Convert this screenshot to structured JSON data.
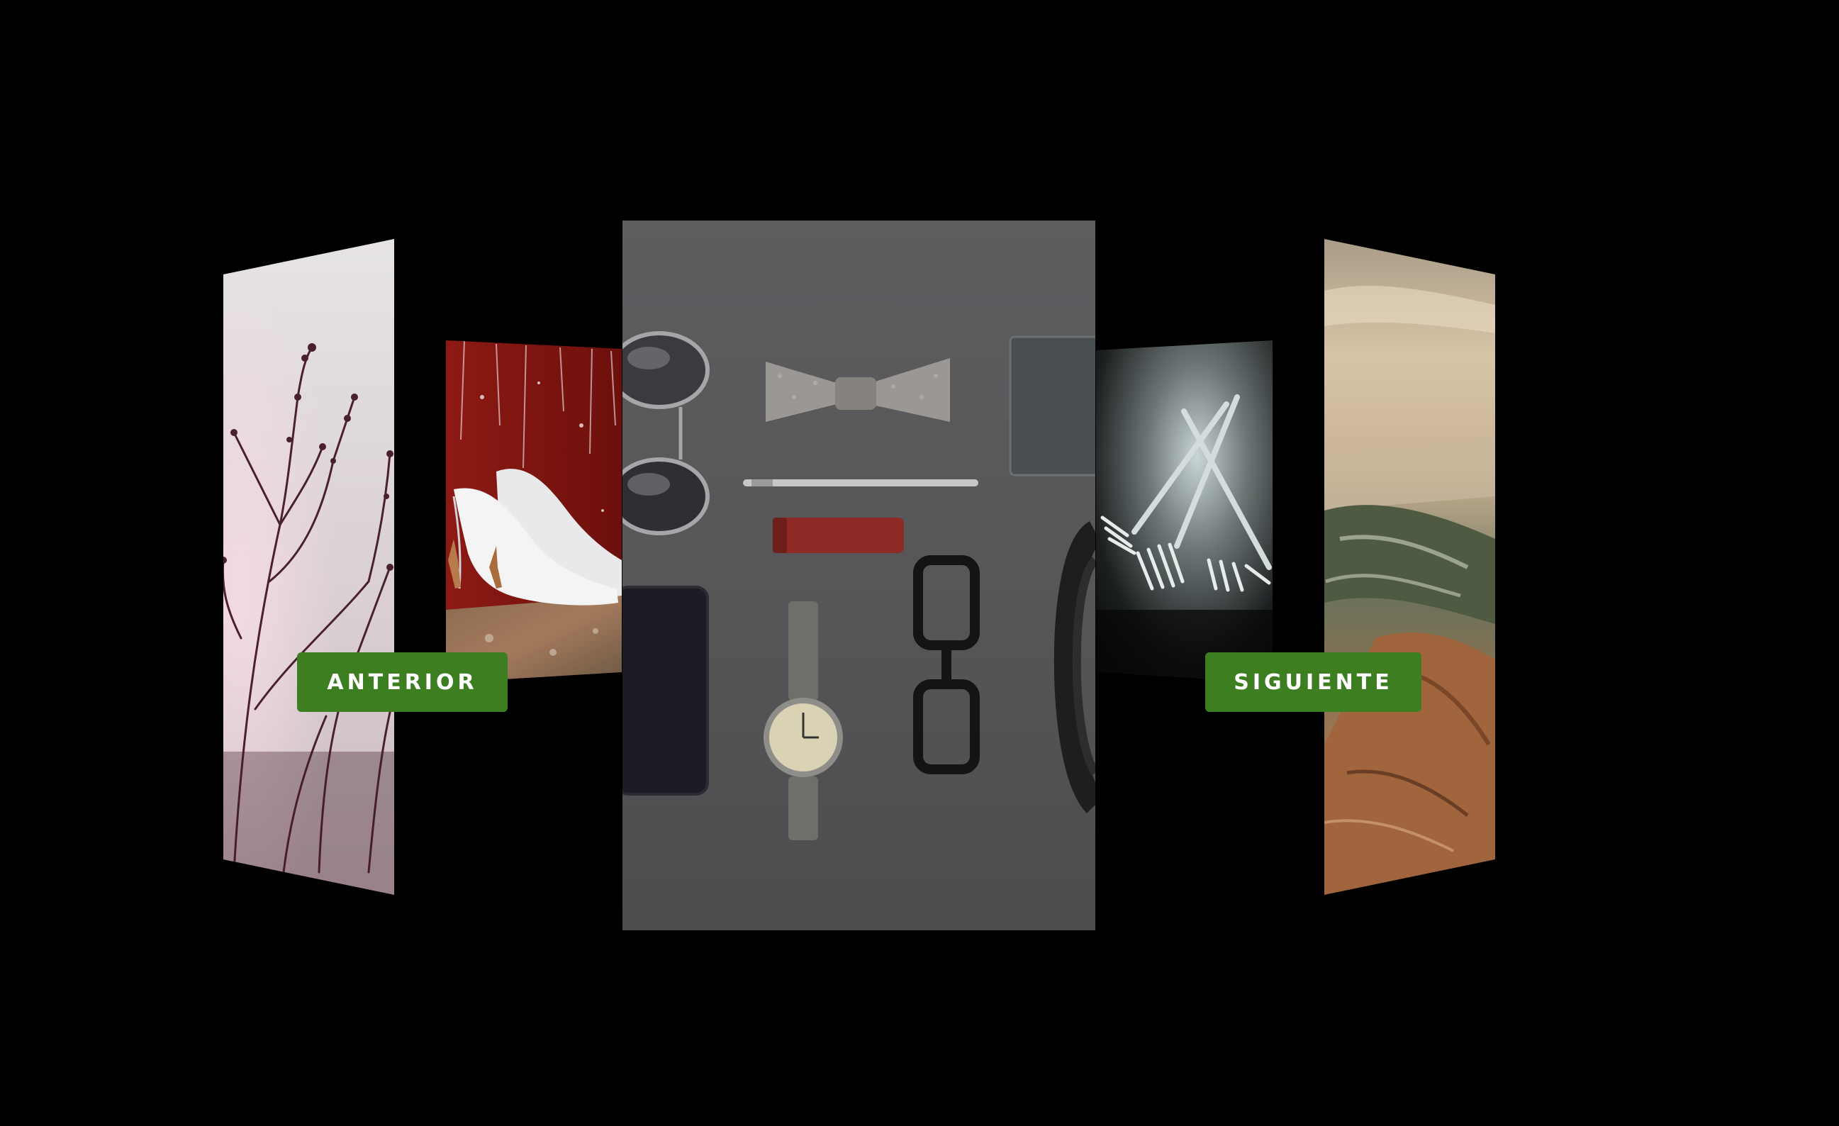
{
  "carousel": {
    "previous_label": "ANTERIOR",
    "next_label": "SIGUIENTE",
    "slides": [
      {
        "subject": "bare branches against pale sky"
      },
      {
        "subject": "white high heels on red wooden wall"
      },
      {
        "subject": "flat lay of accessories: sunglasses, bow tie, pen, watch, glasses, phone"
      },
      {
        "subject": "crossed forks in dark light"
      },
      {
        "subject": "rocky coastline with sea at sunset"
      }
    ]
  },
  "colors": {
    "background": "#000000",
    "button": "#3d7f20",
    "button_text": "#ffffff"
  }
}
